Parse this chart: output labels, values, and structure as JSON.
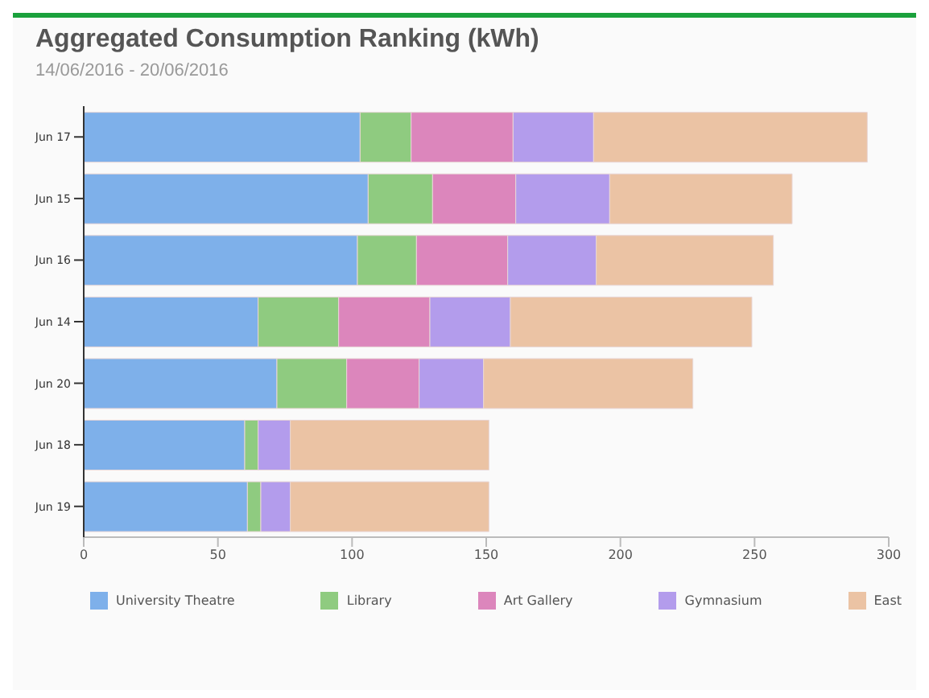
{
  "chart_data": {
    "type": "bar",
    "orientation": "horizontal",
    "stacked": true,
    "title": "Aggregated Consumption Ranking (kWh)",
    "subtitle": "14/06/2016 - 20/06/2016",
    "categories": [
      "Jun 17",
      "Jun 15",
      "Jun 16",
      "Jun 14",
      "Jun 20",
      "Jun 18",
      "Jun 19"
    ],
    "series": [
      {
        "name": "University Theatre",
        "color": "#7eb0ea",
        "values": [
          103,
          106,
          102,
          65,
          72,
          60,
          61
        ]
      },
      {
        "name": "Library",
        "color": "#8fcb80",
        "values": [
          19,
          24,
          22,
          30,
          26,
          5,
          5
        ]
      },
      {
        "name": "Art Gallery",
        "color": "#dc86bc",
        "values": [
          38,
          31,
          34,
          34,
          27,
          0,
          0
        ]
      },
      {
        "name": "Gymnasium",
        "color": "#b39cec",
        "values": [
          30,
          35,
          33,
          30,
          24,
          12,
          11
        ]
      },
      {
        "name": "East",
        "color": "#ebc3a4",
        "values": [
          102,
          68,
          66,
          90,
          78,
          74,
          74
        ]
      }
    ],
    "xlim": [
      0,
      300
    ],
    "xticks": [
      0,
      50,
      100,
      150,
      200,
      250,
      300
    ],
    "grid": false,
    "legend": "bottom"
  }
}
